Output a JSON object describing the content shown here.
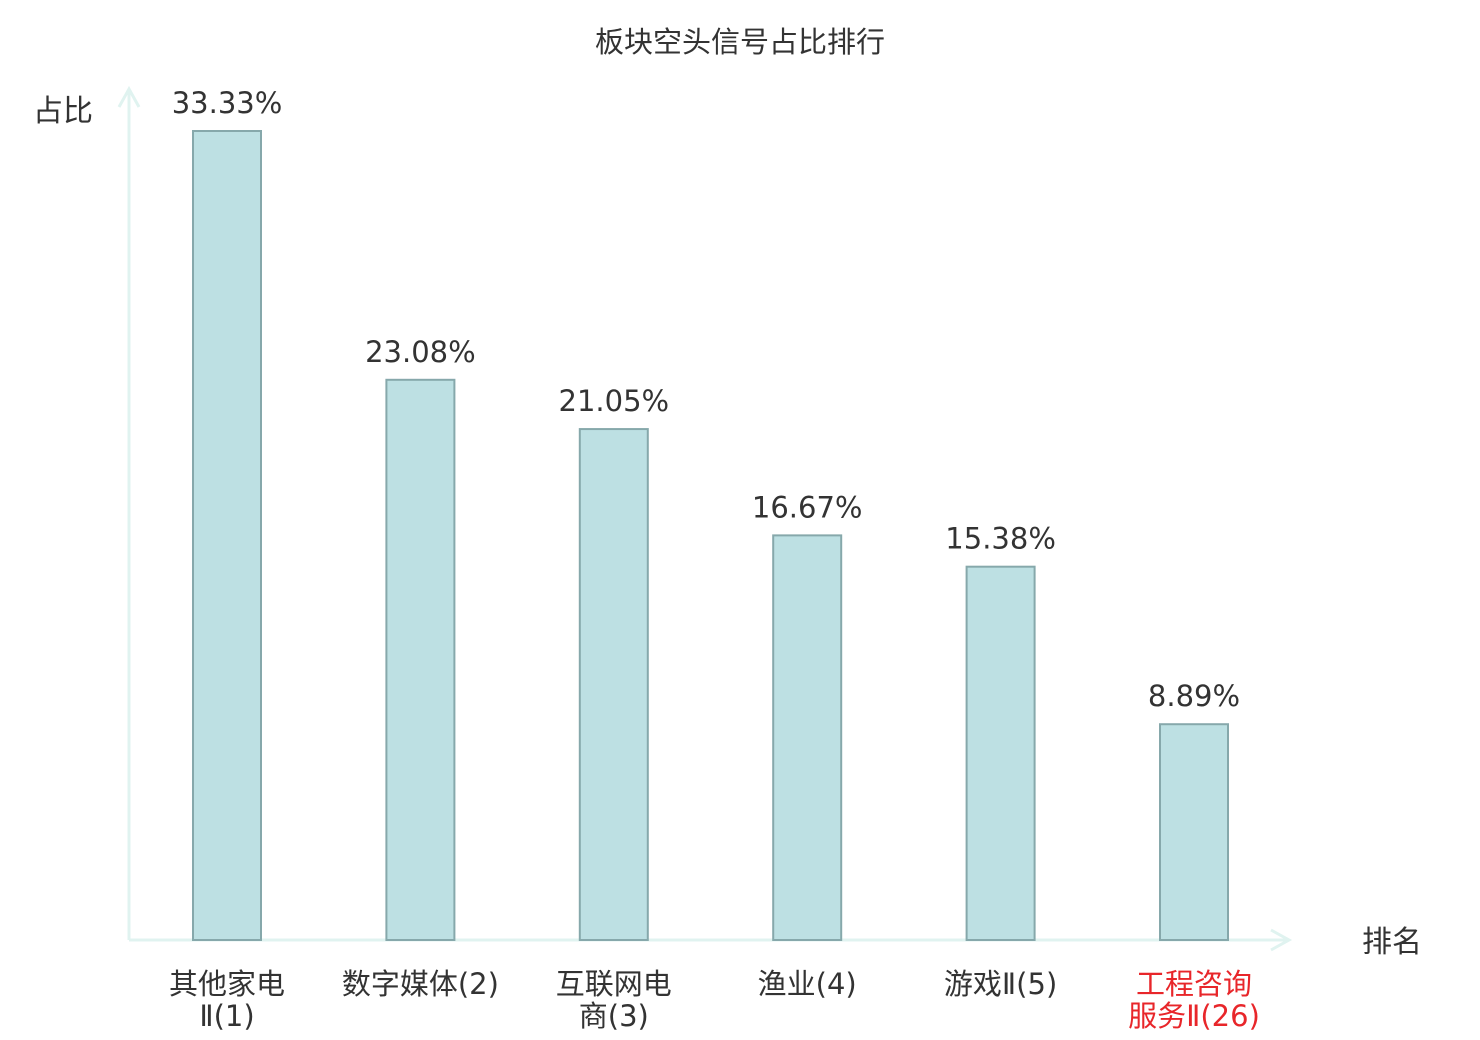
{
  "chart_data": {
    "type": "bar",
    "title": "板块空头信号占比排行",
    "xlabel": "排名",
    "ylabel": "占比",
    "ylim": [
      0,
      33.33
    ],
    "grid": false,
    "categories": [
      {
        "lines": [
          "其他家电",
          "Ⅱ(1)"
        ],
        "highlight": false
      },
      {
        "lines": [
          "数字媒体(2)"
        ],
        "highlight": false
      },
      {
        "lines": [
          "互联网电",
          "商(3)"
        ],
        "highlight": false
      },
      {
        "lines": [
          "渔业(4)"
        ],
        "highlight": false
      },
      {
        "lines": [
          "游戏Ⅱ(5)"
        ],
        "highlight": false
      },
      {
        "lines": [
          "工程咨询",
          "服务Ⅱ(26)"
        ],
        "highlight": true
      }
    ],
    "values": [
      33.33,
      23.08,
      21.05,
      16.67,
      15.38,
      8.89
    ],
    "value_labels": [
      "33.33%",
      "23.08%",
      "21.05%",
      "16.67%",
      "15.38%",
      "8.89%"
    ],
    "colors": {
      "bar_fill": "#bde0e3",
      "bar_stroke": "#86a8ab",
      "axis": "#e0f3f0",
      "text": "#333333",
      "highlight_text": "#e8262a"
    }
  }
}
